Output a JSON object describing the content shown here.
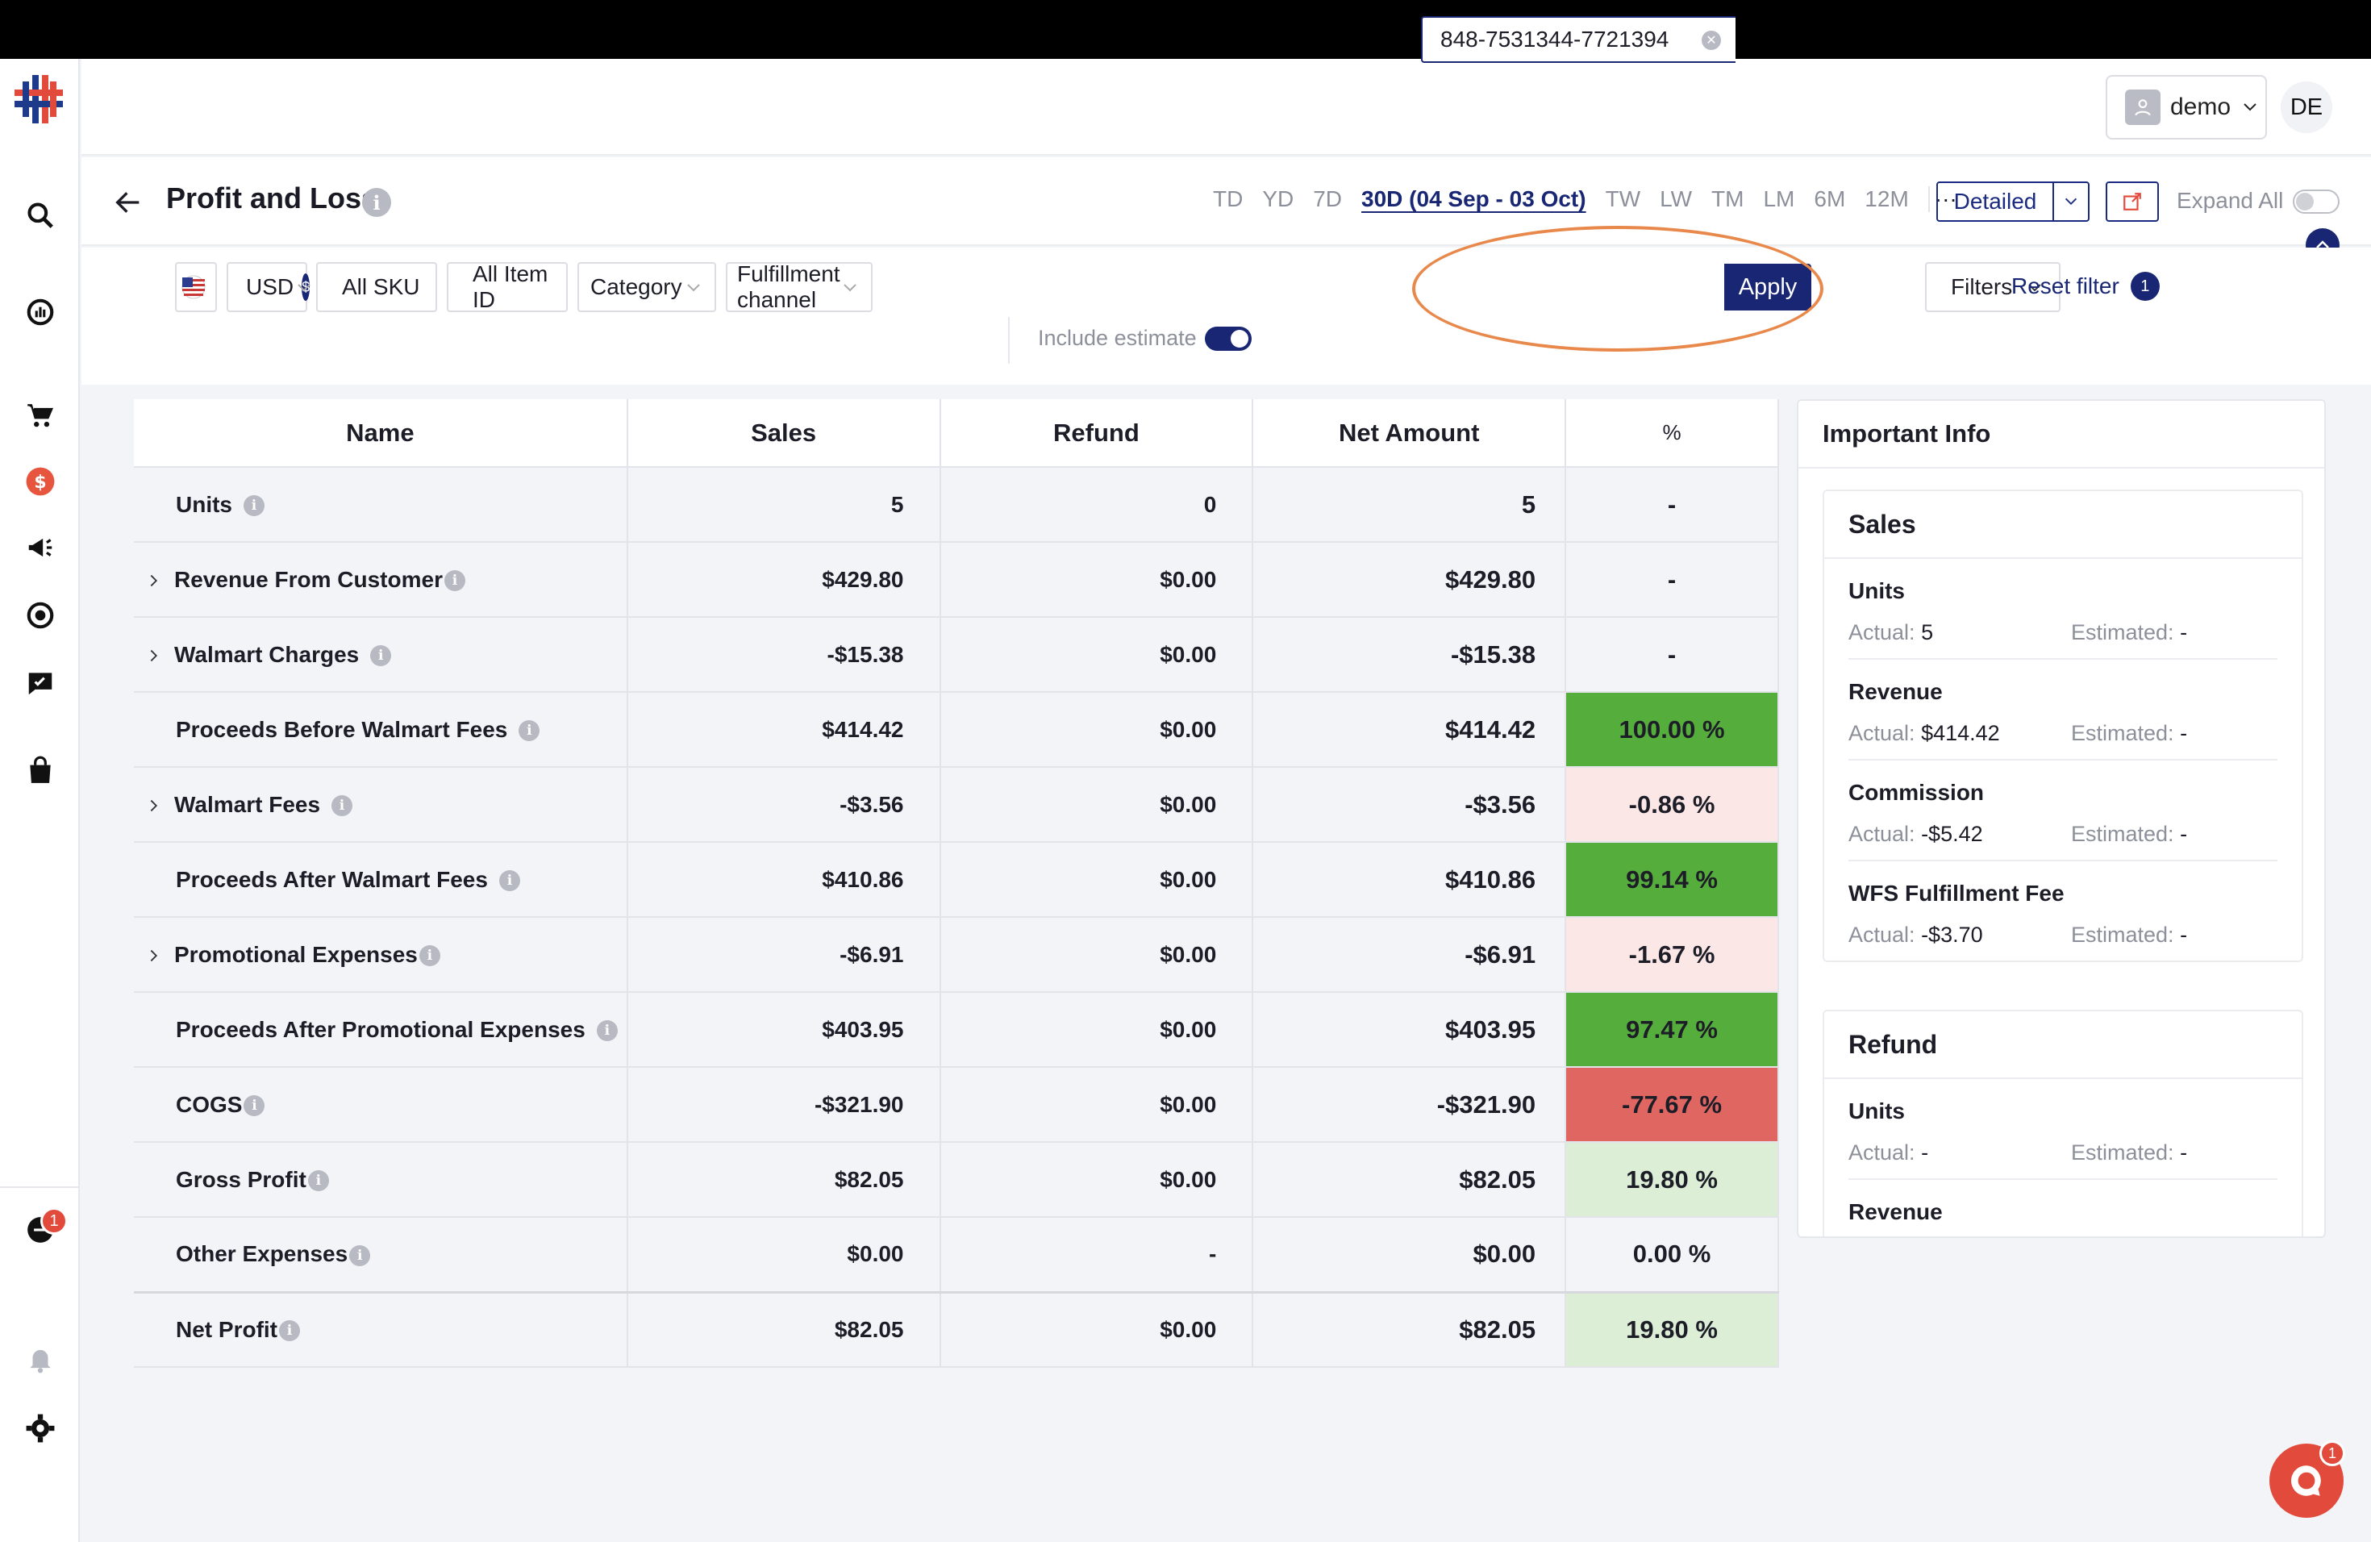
{
  "header": {
    "user_name": "demo",
    "avatar_initials": "DE"
  },
  "title_bar": {
    "title": "Profit and Loss",
    "ranges": [
      "TD",
      "YD",
      "7D",
      "30D (04 Sep - 03 Oct)",
      "TW",
      "LW",
      "TM",
      "LM",
      "6M",
      "12M"
    ],
    "active_range": "30D (04 Sep - 03 Oct)",
    "more_label": "···",
    "view_mode": "Detailed",
    "expand_all_label": "Expand All"
  },
  "filters": {
    "currency": "USD",
    "currency_symbol": "$",
    "sku": "All SKU",
    "item_id": "All Item ID",
    "category": "Category",
    "fulfillment": "Fulfillment channel",
    "search_value": "848-7531344-7721394",
    "apply_label": "Apply",
    "filters_label": "Filters",
    "reset_label": "Reset filter",
    "reset_count": "1",
    "include_estimate_label": "Include estimate",
    "include_estimate_on": true
  },
  "table": {
    "columns": [
      "Name",
      "Sales",
      "Refund",
      "Net Amount",
      "%"
    ],
    "rows": [
      {
        "name": "Units",
        "expandable": false,
        "sales": "5",
        "refund": "0",
        "net": "5",
        "net_tone": "pos",
        "pct": "-",
        "pct_tone": "none"
      },
      {
        "name": "Revenue From Customer",
        "expandable": true,
        "sales": "$429.80",
        "refund": "$0.00",
        "net": "$429.80",
        "net_tone": "pos",
        "pct": "-",
        "pct_tone": "none"
      },
      {
        "name": "Walmart Charges",
        "expandable": true,
        "sales": "-$15.38",
        "refund": "$0.00",
        "net": "-$15.38",
        "net_tone": "neg",
        "pct": "-",
        "pct_tone": "none"
      },
      {
        "name": "Proceeds Before Walmart Fees",
        "expandable": false,
        "sales": "$414.42",
        "refund": "$0.00",
        "net": "$414.42",
        "net_tone": "pos",
        "pct": "100.00 %",
        "pct_tone": "green"
      },
      {
        "name": "Walmart Fees",
        "expandable": true,
        "sales": "-$3.56",
        "refund": "$0.00",
        "net": "-$3.56",
        "net_tone": "neg",
        "pct": "-0.86 %",
        "pct_tone": "pink"
      },
      {
        "name": "Proceeds After Walmart Fees",
        "expandable": false,
        "sales": "$410.86",
        "refund": "$0.00",
        "net": "$410.86",
        "net_tone": "pos",
        "pct": "99.14 %",
        "pct_tone": "green"
      },
      {
        "name": "Promotional Expenses",
        "expandable": true,
        "sales": "-$6.91",
        "refund": "$0.00",
        "net": "-$6.91",
        "net_tone": "neg",
        "pct": "-1.67 %",
        "pct_tone": "pink"
      },
      {
        "name": "Proceeds After Promotional Expenses",
        "expandable": false,
        "sales": "$403.95",
        "refund": "$0.00",
        "net": "$403.95",
        "net_tone": "pos",
        "pct": "97.47 %",
        "pct_tone": "green"
      },
      {
        "name": "COGS",
        "expandable": false,
        "sales": "-$321.90",
        "refund": "$0.00",
        "net": "-$321.90",
        "net_tone": "neg",
        "pct": "-77.67 %",
        "pct_tone": "red"
      },
      {
        "name": "Gross Profit",
        "expandable": false,
        "sales": "$82.05",
        "refund": "$0.00",
        "net": "$82.05",
        "net_tone": "pos",
        "pct": "19.80 %",
        "pct_tone": "lightgreen"
      },
      {
        "name": "Other Expenses",
        "expandable": false,
        "sales": "$0.00",
        "refund": "-",
        "net": "$0.00",
        "net_tone": "blk",
        "pct": "0.00 %",
        "pct_tone": "none"
      },
      {
        "name": "Net Profit",
        "expandable": false,
        "sales": "$82.05",
        "refund": "$0.00",
        "net": "$82.05",
        "net_tone": "pos",
        "pct": "19.80 %",
        "pct_tone": "lightgreen"
      }
    ]
  },
  "important_info": {
    "title": "Important Info",
    "sections": [
      {
        "title": "Sales",
        "metrics": [
          {
            "name": "Units",
            "actual": "5",
            "estimated": "-"
          },
          {
            "name": "Revenue",
            "actual": "$414.42",
            "estimated": "-"
          },
          {
            "name": "Commission",
            "actual": "-$5.42",
            "estimated": "-"
          },
          {
            "name": "WFS Fulfillment Fee",
            "actual": "-$3.70",
            "estimated": "-"
          }
        ]
      },
      {
        "title": "Refund",
        "metrics": [
          {
            "name": "Units",
            "actual": "-",
            "estimated": "-"
          },
          {
            "name": "Revenue",
            "actual": "",
            "estimated": ""
          }
        ]
      }
    ],
    "actual_label": "Actual:",
    "estimated_label": "Estimated:"
  },
  "notifications": {
    "sidebar_badge": "1",
    "chat_badge": "1"
  },
  "colors": {
    "brand_navy": "#182673",
    "negative_red": "#e03e32",
    "percent_green": "#55ad3c",
    "percent_red": "#e06661",
    "highlight_orange": "#e8884a"
  }
}
